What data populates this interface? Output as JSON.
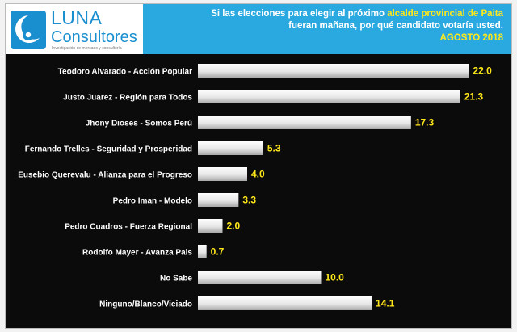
{
  "logo": {
    "name": "LUNA",
    "name2": "Consultores",
    "tagline": "Investigación de mercado y consultoría"
  },
  "header": {
    "line1_pre": "Si las elecciones para elegir al próximo ",
    "line1_highlight": "alcalde provincial de Paita",
    "line2": "fueran mañana, por qué candidato votaría usted.",
    "line3": "AGOSTO 2018"
  },
  "colors": {
    "header_bg": "#2aa9e0",
    "highlight": "#ffe81a",
    "bar": "#ececec",
    "background": "#0b0b0b",
    "value_label": "#ffe81a"
  },
  "chart_data": {
    "type": "bar",
    "orientation": "horizontal",
    "categories": [
      "Teodoro Alvarado - Acción Popular",
      "Justo Juarez - Región para Todos",
      "Jhony Dioses - Somos Perú",
      "Fernando Trelles - Seguridad y Prosperidad",
      "Eusebio Querevalu - Alianza para el Progreso",
      "Pedro Iman - Modelo",
      "Pedro Cuadros - Fuerza Regional",
      "Rodolfo Mayer - Avanza Pais",
      "No Sabe",
      "Ninguno/Blanco/Viciado"
    ],
    "values": [
      22.0,
      21.3,
      17.3,
      5.3,
      4.0,
      3.3,
      2.0,
      0.7,
      10.0,
      14.1
    ],
    "value_labels": [
      "22.0",
      "21.3",
      "17.3",
      "5.3",
      "4.0",
      "3.3",
      "2.0",
      "0.7",
      "10.0",
      "14.1"
    ],
    "xlim": [
      0,
      24
    ],
    "grid": false,
    "legend": "none"
  }
}
